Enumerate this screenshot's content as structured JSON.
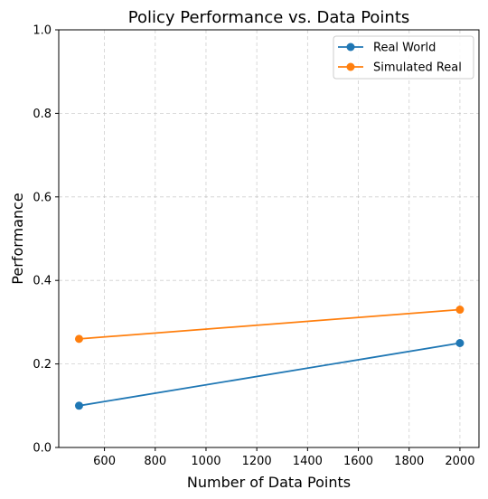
{
  "chart_data": {
    "type": "line",
    "title": "Policy Performance vs. Data Points",
    "xlabel": "Number of Data Points",
    "ylabel": "Performance",
    "xlim": [
      420,
      2075
    ],
    "ylim": [
      0.0,
      1.0
    ],
    "xticks": [
      600,
      800,
      1000,
      1200,
      1400,
      1600,
      1800,
      2000
    ],
    "yticks": [
      0.0,
      0.2,
      0.4,
      0.6,
      0.8,
      1.0
    ],
    "xtick_labels": [
      "600",
      "800",
      "1000",
      "1200",
      "1400",
      "1600",
      "1800",
      "2000"
    ],
    "ytick_labels": [
      "0.0",
      "0.2",
      "0.4",
      "0.6",
      "0.8",
      "1.0"
    ],
    "grid": true,
    "legend_position": "top-right",
    "series": [
      {
        "name": "Real World",
        "color": "#1f77b4",
        "x": [
          500,
          2000
        ],
        "y": [
          0.1,
          0.25
        ]
      },
      {
        "name": "Simulated Real",
        "color": "#ff7f0e",
        "x": [
          500,
          2000
        ],
        "y": [
          0.26,
          0.33
        ]
      }
    ]
  }
}
